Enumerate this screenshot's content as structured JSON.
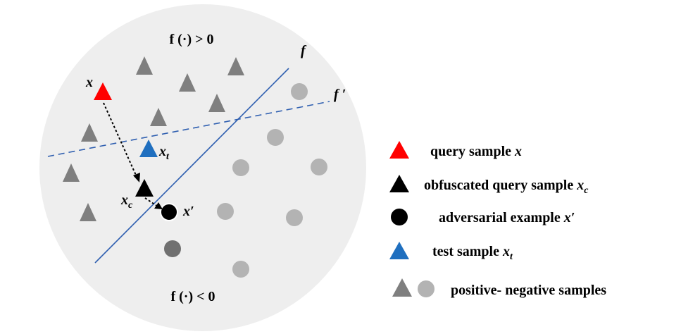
{
  "region_labels": {
    "positive": "f (·) > 0",
    "negative": "f (·) < 0"
  },
  "boundary_labels": {
    "solid": "f",
    "dashed": "f ′"
  },
  "point_labels": {
    "query": "x",
    "test_main": "x",
    "test_sub": "t",
    "obfuscated_main": "x",
    "obfuscated_sub": "c",
    "adversarial": "x′"
  },
  "legend": [
    {
      "key": "query",
      "text": "query sample ",
      "var": "x",
      "sub": ""
    },
    {
      "key": "obfuscated",
      "text": "obfuscated query sample ",
      "var": "x",
      "sub": "c"
    },
    {
      "key": "adversarial",
      "text": "adversarial example ",
      "var": "x′",
      "sub": ""
    },
    {
      "key": "test",
      "text": "test sample ",
      "var": "x",
      "sub": "t"
    },
    {
      "key": "samples",
      "text": "positive- negative samples",
      "var": "",
      "sub": ""
    }
  ],
  "colors": {
    "disc": "#eeeeee",
    "query": "#ff0000",
    "test": "#1f6fbf",
    "obfuscated": "#000000",
    "adversarial": "#000000",
    "positive": "#7f7f7f",
    "negative": "#b3b3b3",
    "boundary": "#2f5fb0",
    "text": "#000000"
  }
}
